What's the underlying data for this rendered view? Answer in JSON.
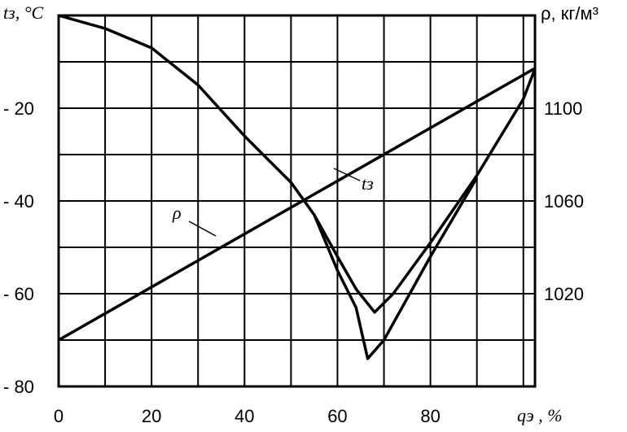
{
  "chart_data": {
    "type": "line",
    "y_label": "tз, °C",
    "y2_label": "ρ, кг/м³",
    "x_label": "qэ , %",
    "xlim": [
      0,
      102.5
    ],
    "xticks": [
      0,
      20,
      40,
      60,
      80
    ],
    "minor_xticks": [
      10,
      30,
      50,
      70,
      90,
      100
    ],
    "ylim": [
      -80,
      0
    ],
    "yticks": [
      {
        "value": -20,
        "label": "- 20"
      },
      {
        "value": -40,
        "label": "- 40"
      },
      {
        "value": -60,
        "label": "- 60"
      },
      {
        "value": -80,
        "label": "- 80"
      }
    ],
    "minor_yticks": [
      -10,
      -30,
      -50,
      -70
    ],
    "y2lim": [
      980,
      1140
    ],
    "y2ticks": [
      1020,
      1060,
      1100
    ],
    "grid": true,
    "series": [
      {
        "name": "tз",
        "color": "#000000",
        "x": [
          0,
          10,
          20,
          30,
          40,
          50,
          55,
          60,
          64,
          68,
          72,
          80,
          90,
          100,
          102.3
        ],
        "values": [
          0,
          -2.8,
          -7,
          -15,
          -26,
          -36,
          -43,
          -52,
          -59,
          -64,
          -60,
          -49,
          -34.5,
          -18,
          -12
        ]
      },
      {
        "color": "#000000",
        "x": [
          55,
          60,
          64,
          66.5,
          70,
          80,
          90
        ],
        "values": [
          -43,
          -55,
          -63,
          -74,
          -70,
          -52,
          -35
        ]
      },
      {
        "name": "ρ",
        "color": "#000000",
        "axis": "y2",
        "x": [
          0,
          102.3
        ],
        "values": [
          1000,
          1117
        ]
      }
    ]
  }
}
